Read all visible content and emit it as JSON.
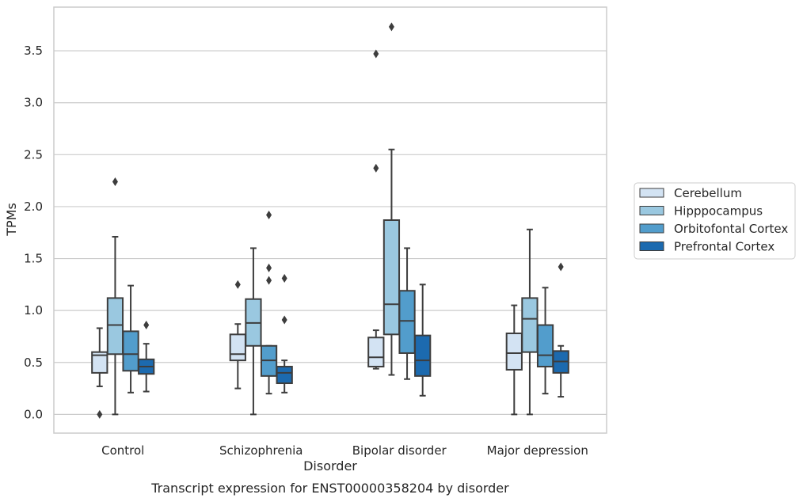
{
  "caption": "Transcript expression for ENST00000358204 by disorder",
  "chart_data": {
    "type": "boxplot",
    "title": "",
    "xlabel": "Disorder",
    "ylabel": "TPMs",
    "ylim": [
      -0.18,
      3.92
    ],
    "yticks": [
      "0.0",
      "0.5",
      "1.0",
      "1.5",
      "2.0",
      "2.5",
      "3.0",
      "3.5"
    ],
    "grid": "horizontal",
    "legend_position": "right",
    "categories": [
      "Control",
      "Schizophrenia",
      "Bipolar disorder",
      "Major depression"
    ],
    "series": [
      {
        "name": "Cerebellum",
        "color": "#d3e3f3",
        "boxes": [
          {
            "whislo": 0.27,
            "q1": 0.4,
            "med": 0.57,
            "q3": 0.6,
            "whishi": 0.83,
            "fliers": [
              0.0
            ]
          },
          {
            "whislo": 0.25,
            "q1": 0.52,
            "med": 0.58,
            "q3": 0.77,
            "whishi": 0.87,
            "fliers": [
              1.25
            ]
          },
          {
            "whislo": 0.44,
            "q1": 0.46,
            "med": 0.55,
            "q3": 0.74,
            "whishi": 0.81,
            "fliers": [
              2.37,
              3.47
            ]
          },
          {
            "whislo": 0.0,
            "q1": 0.43,
            "med": 0.59,
            "q3": 0.78,
            "whishi": 1.05,
            "fliers": []
          }
        ]
      },
      {
        "name": "Hipppocampus",
        "color": "#9ac8e0",
        "boxes": [
          {
            "whislo": 0.0,
            "q1": 0.58,
            "med": 0.86,
            "q3": 1.12,
            "whishi": 1.71,
            "fliers": [
              2.24
            ]
          },
          {
            "whislo": 0.0,
            "q1": 0.66,
            "med": 0.88,
            "q3": 1.11,
            "whishi": 1.6,
            "fliers": []
          },
          {
            "whislo": 0.38,
            "q1": 0.77,
            "med": 1.06,
            "q3": 1.87,
            "whishi": 2.55,
            "fliers": [
              3.73
            ]
          },
          {
            "whislo": 0.0,
            "q1": 0.6,
            "med": 0.92,
            "q3": 1.12,
            "whishi": 1.78,
            "fliers": []
          }
        ]
      },
      {
        "name": "Orbitofontal Cortex",
        "color": "#529dcc",
        "boxes": [
          {
            "whislo": 0.21,
            "q1": 0.42,
            "med": 0.58,
            "q3": 0.8,
            "whishi": 1.24,
            "fliers": []
          },
          {
            "whislo": 0.2,
            "q1": 0.37,
            "med": 0.52,
            "q3": 0.66,
            "whishi": 0.66,
            "fliers": [
              1.29,
              1.41,
              1.92
            ]
          },
          {
            "whislo": 0.34,
            "q1": 0.59,
            "med": 0.9,
            "q3": 1.19,
            "whishi": 1.6,
            "fliers": []
          },
          {
            "whislo": 0.2,
            "q1": 0.46,
            "med": 0.57,
            "q3": 0.86,
            "whishi": 1.22,
            "fliers": []
          }
        ]
      },
      {
        "name": "Prefrontal Cortex",
        "color": "#1c6aaf",
        "boxes": [
          {
            "whislo": 0.22,
            "q1": 0.39,
            "med": 0.46,
            "q3": 0.53,
            "whishi": 0.68,
            "fliers": [
              0.86
            ]
          },
          {
            "whislo": 0.21,
            "q1": 0.3,
            "med": 0.4,
            "q3": 0.46,
            "whishi": 0.52,
            "fliers": [
              0.91,
              1.31
            ]
          },
          {
            "whislo": 0.18,
            "q1": 0.37,
            "med": 0.52,
            "q3": 0.76,
            "whishi": 1.25,
            "fliers": []
          },
          {
            "whislo": 0.17,
            "q1": 0.4,
            "med": 0.51,
            "q3": 0.61,
            "whishi": 0.66,
            "fliers": [
              1.42
            ]
          }
        ]
      }
    ]
  }
}
